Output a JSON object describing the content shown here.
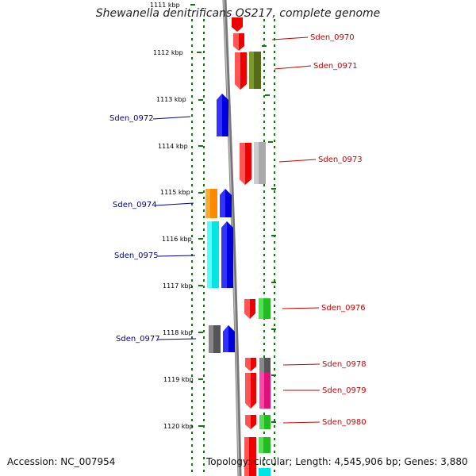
{
  "title": "Shewanella denitrificans OS217, complete genome",
  "accession": "Accession: NC_007954",
  "topology": "Topology: circular; Length: 4,545,906 bp; Genes: 3,880",
  "scale_labels": [
    "1111 kbp",
    "1112 kbp",
    "1113 kbp",
    "1114 kbp",
    "1115 kbp",
    "1116 kbp",
    "1117 kbp",
    "1118 kbp",
    "1119 kbp",
    "1120 kbp"
  ],
  "colors": {
    "forward_label": "#cc0000",
    "reverse_label": "#000099",
    "backbone": "#888888",
    "tick": "#117711"
  },
  "gene_labels": [
    {
      "text": "Sden_0970",
      "strand": "forward"
    },
    {
      "text": "Sden_0971",
      "strand": "forward"
    },
    {
      "text": "Sden_0972",
      "strand": "reverse"
    },
    {
      "text": "Sden_0973",
      "strand": "forward"
    },
    {
      "text": "Sden_0974",
      "strand": "reverse"
    },
    {
      "text": "Sden_0975",
      "strand": "reverse"
    },
    {
      "text": "Sden_0976",
      "strand": "forward"
    },
    {
      "text": "Sden_0977",
      "strand": "reverse"
    },
    {
      "text": "Sden_0978",
      "strand": "forward"
    },
    {
      "text": "Sden_0979",
      "strand": "forward"
    },
    {
      "text": "Sden_0980",
      "strand": "forward"
    }
  ]
}
